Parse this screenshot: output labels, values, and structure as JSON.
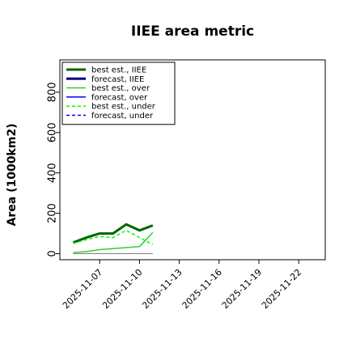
{
  "chart_data": {
    "type": "line",
    "title": "IIEE area metric",
    "xlabel": "",
    "ylabel": "Area (1000km2)",
    "ylim": [
      -30,
      960
    ],
    "xlim": [
      "2025-11-04",
      "2025-11-24"
    ],
    "y_ticks": [
      "0",
      "200",
      "400",
      "600",
      "800"
    ],
    "x_ticks": [
      "2025-11-07",
      "2025-11-10",
      "2025-11-13",
      "2025-11-16",
      "2025-11-19",
      "2025-11-22"
    ],
    "x_tick_colors": [
      "#000000",
      "#000000",
      "#008000",
      "#000000",
      "#000000",
      "#000000"
    ],
    "grid": false,
    "legend_position": "top-left",
    "x": [
      "2025-11-05",
      "2025-11-06",
      "2025-11-07",
      "2025-11-08",
      "2025-11-09",
      "2025-11-10",
      "2025-11-11",
      "2025-11-12"
    ],
    "series": [
      {
        "name": "best est., IIEE",
        "color": "#006400",
        "style": "solid",
        "width": "thick",
        "values": [
          55,
          80,
          100,
          100,
          145,
          115,
          140,
          null
        ]
      },
      {
        "name": "forecast, IIEE",
        "color": "#00008b",
        "style": "solid",
        "width": "thick",
        "values": [
          null,
          null,
          null,
          null,
          null,
          null,
          null,
          null
        ]
      },
      {
        "name": "best est., over",
        "color": "#32cd32",
        "style": "solid",
        "width": "thin",
        "values": [
          5,
          10,
          20,
          25,
          30,
          35,
          105,
          null
        ]
      },
      {
        "name": "forecast, over",
        "color": "#0000ff",
        "style": "solid",
        "width": "thin",
        "values": [
          null,
          null,
          null,
          null,
          null,
          null,
          null,
          null
        ]
      },
      {
        "name": "best est., under",
        "color": "#00ff00",
        "style": "dashed",
        "width": "thin",
        "values": [
          50,
          70,
          85,
          80,
          115,
          80,
          45,
          null
        ]
      },
      {
        "name": "forecast, under",
        "color": "#0000ff",
        "style": "dashed",
        "width": "thin",
        "values": [
          null,
          null,
          null,
          null,
          null,
          null,
          null,
          null
        ]
      }
    ],
    "reference_line": {
      "y": 0,
      "x_start": "2025-11-05",
      "x_end": "2025-11-11",
      "color": "#808080"
    }
  }
}
